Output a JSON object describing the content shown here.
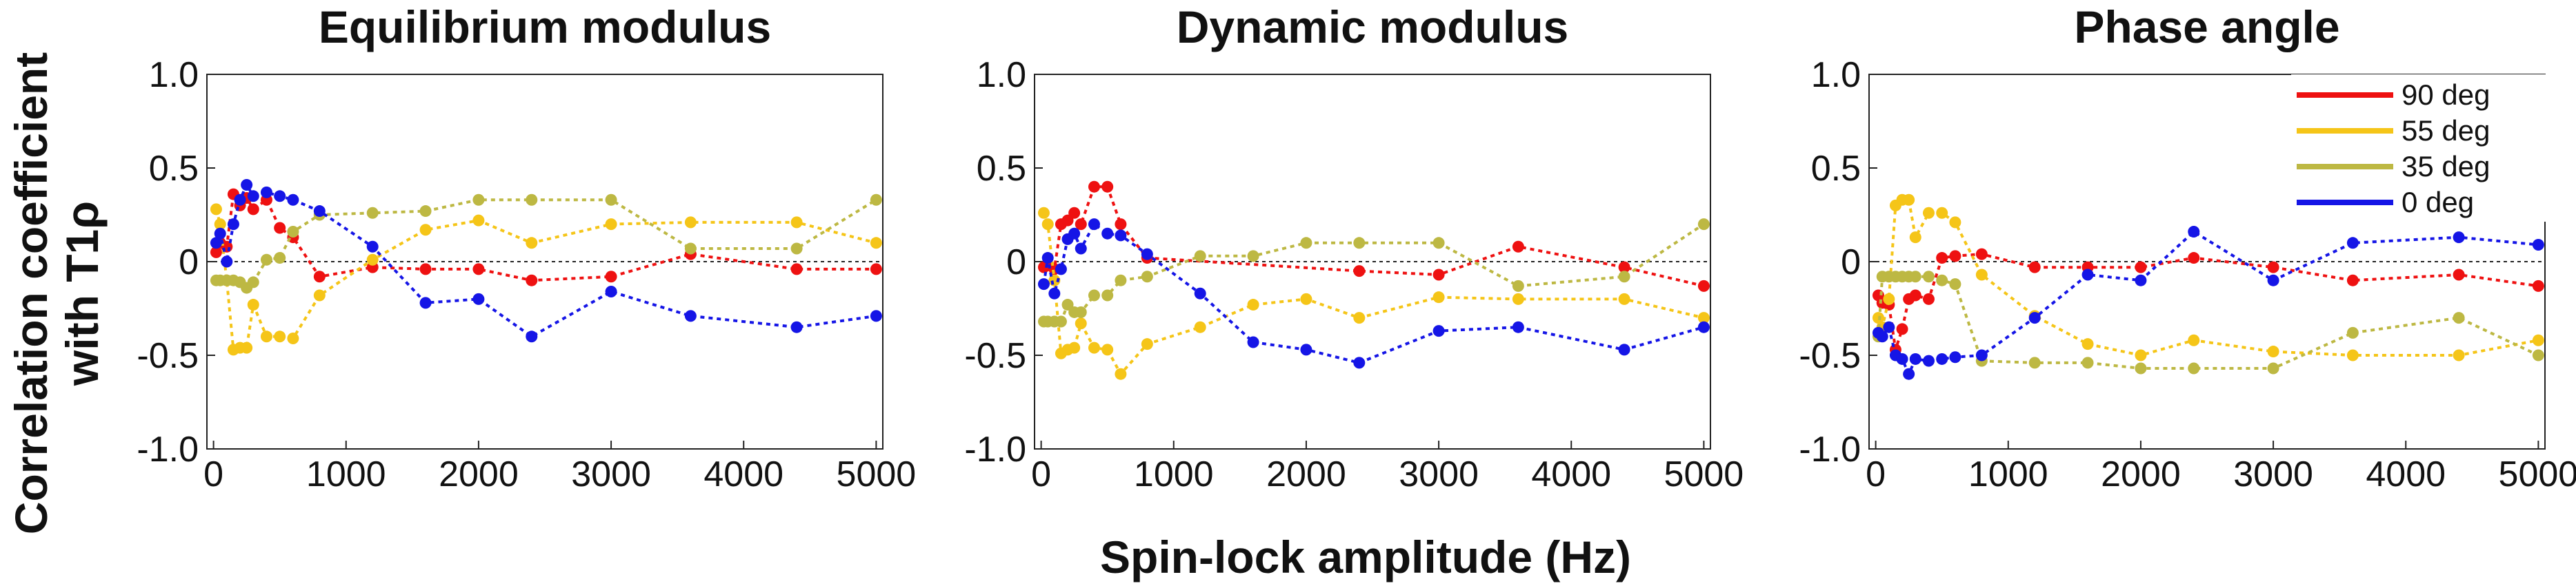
{
  "figure": {
    "ylabel_line1": "Correlation coefficient",
    "ylabel_line2": "with T1ρ",
    "xlabel": "Spin-lock amplitude (Hz)"
  },
  "legend": {
    "placement": "top-right of third panel",
    "entries": [
      {
        "name": "90 deg",
        "color": "#ee1111"
      },
      {
        "name": "55 deg",
        "color": "#f5c518"
      },
      {
        "name": "35 deg",
        "color": "#bdb843"
      },
      {
        "name": "0 deg",
        "color": "#1515e6"
      }
    ]
  },
  "chart_data": [
    {
      "type": "line",
      "title": "Equilibrium modulus",
      "xlim": [
        -50,
        5050
      ],
      "ylim": [
        -1.0,
        1.0
      ],
      "xticks": [
        "0",
        "1000",
        "2000",
        "3000",
        "4000",
        "5000"
      ],
      "yticks": [
        "1.0",
        "0.5",
        "0",
        "-0.5",
        "-1.0"
      ],
      "reference_line_y": 0,
      "series": [
        {
          "name": "90 deg",
          "color": "#ee1111",
          "x": [
            20,
            50,
            100,
            150,
            200,
            250,
            300,
            400,
            500,
            600,
            800,
            1200,
            1600,
            2000,
            2400,
            3000,
            3600,
            4400,
            5000
          ],
          "y": [
            0.05,
            0.1,
            0.08,
            0.36,
            0.3,
            0.34,
            0.28,
            0.33,
            0.18,
            0.13,
            -0.08,
            -0.03,
            -0.04,
            -0.04,
            -0.1,
            -0.08,
            0.04,
            -0.04,
            -0.04
          ]
        },
        {
          "name": "55 deg",
          "color": "#f5c518",
          "x": [
            20,
            50,
            100,
            150,
            200,
            250,
            300,
            400,
            500,
            600,
            800,
            1200,
            1600,
            2000,
            2400,
            3000,
            3600,
            4400,
            5000
          ],
          "y": [
            0.28,
            0.2,
            -0.1,
            -0.47,
            -0.46,
            -0.46,
            -0.23,
            -0.4,
            -0.4,
            -0.41,
            -0.18,
            0.01,
            0.17,
            0.22,
            0.1,
            0.2,
            0.21,
            0.21,
            0.1
          ]
        },
        {
          "name": "35 deg",
          "color": "#bdb843",
          "x": [
            20,
            50,
            100,
            150,
            200,
            250,
            300,
            400,
            500,
            600,
            800,
            1200,
            1600,
            2000,
            2400,
            3000,
            3600,
            4400,
            5000
          ],
          "y": [
            -0.1,
            -0.1,
            -0.1,
            -0.1,
            -0.11,
            -0.14,
            -0.11,
            0.01,
            0.02,
            0.16,
            0.25,
            0.26,
            0.27,
            0.33,
            0.33,
            0.33,
            0.07,
            0.07,
            0.33
          ]
        },
        {
          "name": "0 deg",
          "color": "#1515e6",
          "x": [
            20,
            50,
            100,
            150,
            200,
            250,
            300,
            400,
            500,
            600,
            800,
            1200,
            1600,
            2000,
            2400,
            3000,
            3600,
            4400,
            5000
          ],
          "y": [
            0.1,
            0.15,
            0.0,
            0.2,
            0.33,
            0.41,
            0.35,
            0.37,
            0.35,
            0.33,
            0.27,
            0.08,
            -0.22,
            -0.2,
            -0.4,
            -0.16,
            -0.29,
            -0.35,
            -0.29
          ]
        }
      ]
    },
    {
      "type": "line",
      "title": "Dynamic modulus",
      "xlim": [
        -50,
        5050
      ],
      "ylim": [
        -1.0,
        1.0
      ],
      "xticks": [
        "0",
        "1000",
        "2000",
        "3000",
        "4000",
        "5000"
      ],
      "yticks": [
        "1.0",
        "0.5",
        "0",
        "-0.5",
        "-1.0"
      ],
      "reference_line_y": 0,
      "series": [
        {
          "name": "90 deg",
          "color": "#ee1111",
          "x": [
            20,
            50,
            100,
            150,
            200,
            250,
            300,
            400,
            500,
            600,
            800,
            2400,
            3000,
            3600,
            4400,
            5000
          ],
          "y": [
            -0.03,
            -0.02,
            -0.04,
            0.2,
            0.22,
            0.26,
            0.2,
            0.4,
            0.4,
            0.2,
            0.02,
            -0.05,
            -0.07,
            0.08,
            -0.03,
            -0.13
          ]
        },
        {
          "name": "55 deg",
          "color": "#f5c518",
          "x": [
            20,
            50,
            100,
            150,
            200,
            250,
            300,
            400,
            500,
            600,
            800,
            1200,
            1600,
            2000,
            2400,
            3000,
            3600,
            4400,
            5000
          ],
          "y": [
            0.26,
            0.2,
            -0.1,
            -0.49,
            -0.47,
            -0.46,
            -0.33,
            -0.46,
            -0.47,
            -0.6,
            -0.44,
            -0.35,
            -0.23,
            -0.2,
            -0.3,
            -0.19,
            -0.2,
            -0.2,
            -0.3
          ]
        },
        {
          "name": "35 deg",
          "color": "#bdb843",
          "x": [
            20,
            50,
            100,
            150,
            200,
            250,
            300,
            400,
            500,
            600,
            800,
            1200,
            1600,
            2000,
            2400,
            3000,
            3600,
            4400,
            5000
          ],
          "y": [
            -0.32,
            -0.32,
            -0.32,
            -0.32,
            -0.23,
            -0.27,
            -0.27,
            -0.18,
            -0.18,
            -0.1,
            -0.08,
            0.03,
            0.03,
            0.1,
            0.1,
            0.1,
            -0.13,
            -0.08,
            0.2
          ]
        },
        {
          "name": "0 deg",
          "color": "#1515e6",
          "x": [
            20,
            50,
            100,
            150,
            200,
            250,
            300,
            400,
            500,
            600,
            800,
            1200,
            1600,
            2000,
            2400,
            3000,
            3600,
            4400,
            5000
          ],
          "y": [
            -0.12,
            0.02,
            -0.17,
            -0.04,
            0.12,
            0.15,
            0.07,
            0.2,
            0.15,
            0.14,
            0.04,
            -0.17,
            -0.43,
            -0.47,
            -0.54,
            -0.37,
            -0.35,
            -0.47,
            -0.35
          ]
        }
      ]
    },
    {
      "type": "line",
      "title": "Phase angle",
      "xlim": [
        -50,
        5050
      ],
      "ylim": [
        -1.0,
        1.0
      ],
      "xticks": [
        "0",
        "1000",
        "2000",
        "3000",
        "4000",
        "5000"
      ],
      "yticks": [
        "1.0",
        "0.5",
        "0",
        "-0.5",
        "-1.0"
      ],
      "reference_line_y": 0,
      "series": [
        {
          "name": "90 deg",
          "color": "#ee1111",
          "x": [
            20,
            50,
            100,
            150,
            200,
            250,
            300,
            400,
            500,
            600,
            800,
            1200,
            1600,
            2000,
            2400,
            3000,
            3600,
            4400,
            5000
          ],
          "y": [
            -0.18,
            -0.22,
            -0.23,
            -0.47,
            -0.36,
            -0.2,
            -0.18,
            -0.2,
            0.02,
            0.03,
            0.04,
            -0.03,
            -0.03,
            -0.03,
            0.02,
            -0.03,
            -0.1,
            -0.07,
            -0.13
          ]
        },
        {
          "name": "55 deg",
          "color": "#f5c518",
          "x": [
            20,
            50,
            100,
            150,
            200,
            250,
            300,
            400,
            500,
            600,
            800,
            1200,
            1600,
            2000,
            2400,
            3000,
            3600,
            4400,
            5000
          ],
          "y": [
            -0.3,
            -0.35,
            -0.2,
            0.3,
            0.33,
            0.33,
            0.13,
            0.26,
            0.26,
            0.21,
            -0.07,
            -0.29,
            -0.44,
            -0.5,
            -0.42,
            -0.48,
            -0.5,
            -0.5,
            -0.42
          ]
        },
        {
          "name": "35 deg",
          "color": "#bdb843",
          "x": [
            20,
            50,
            100,
            150,
            200,
            250,
            300,
            400,
            500,
            600,
            800,
            1200,
            1600,
            2000,
            2400,
            3000,
            3600,
            4400,
            5000
          ],
          "y": [
            -0.4,
            -0.08,
            -0.08,
            -0.08,
            -0.08,
            -0.08,
            -0.08,
            -0.08,
            -0.1,
            -0.12,
            -0.53,
            -0.54,
            -0.54,
            -0.57,
            -0.57,
            -0.57,
            -0.38,
            -0.3,
            -0.5
          ]
        },
        {
          "name": "0 deg",
          "color": "#1515e6",
          "x": [
            20,
            50,
            100,
            150,
            200,
            250,
            300,
            400,
            500,
            600,
            800,
            1200,
            1600,
            2000,
            2400,
            3000,
            3600,
            4400,
            5000
          ],
          "y": [
            -0.38,
            -0.4,
            -0.35,
            -0.5,
            -0.52,
            -0.6,
            -0.52,
            -0.53,
            -0.52,
            -0.51,
            -0.5,
            -0.3,
            -0.07,
            -0.1,
            0.16,
            -0.1,
            0.1,
            0.13,
            0.09
          ]
        }
      ]
    }
  ]
}
